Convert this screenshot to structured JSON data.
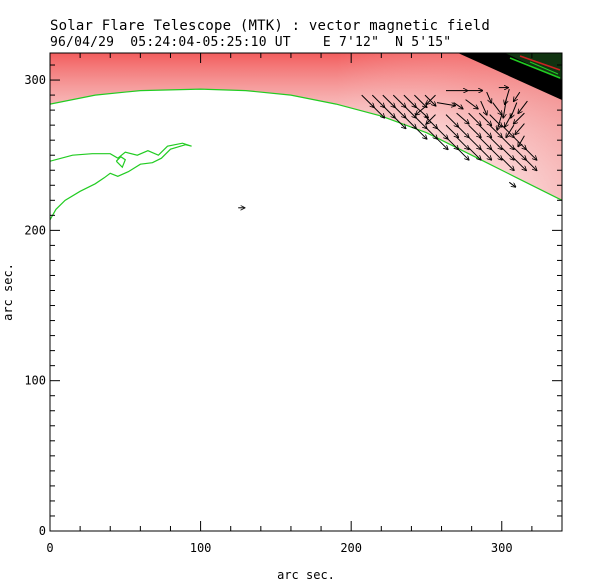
{
  "title": "Solar Flare Telescope (MTK) : vector magnetic field",
  "subtitle": "96/04/29  05:24:04-05:25:10 UT    E 7'12\"  N 5'15\"",
  "colors": {
    "limb": "#22cc22",
    "vector": "#000000",
    "field_red": "#ee4444"
  },
  "chart_data": {
    "type": "vector-field",
    "title": "Solar Flare Telescope (MTK) : vector magnetic field",
    "subtitle": "96/04/29  05:24:04-05:25:10 UT    E 7'12\"  N 5'15\"",
    "xlabel": "arc sec.",
    "ylabel": "arc sec.",
    "xlim": [
      0,
      340
    ],
    "ylim": [
      0,
      318
    ],
    "xticks": [
      0,
      100,
      200,
      300
    ],
    "yticks": [
      0,
      100,
      200,
      300
    ],
    "limb_curve": [
      [
        0,
        284
      ],
      [
        30,
        290
      ],
      [
        60,
        293
      ],
      [
        100,
        294
      ],
      [
        130,
        293
      ],
      [
        160,
        290
      ],
      [
        190,
        284
      ],
      [
        220,
        276
      ],
      [
        250,
        265
      ],
      [
        270,
        255
      ],
      [
        290,
        245
      ],
      [
        310,
        235
      ],
      [
        330,
        225
      ],
      [
        340,
        220
      ]
    ],
    "contour_a": [
      [
        0,
        246
      ],
      [
        15,
        250
      ],
      [
        28,
        251
      ],
      [
        40,
        251
      ],
      [
        45,
        248
      ],
      [
        50,
        252
      ],
      [
        58,
        250
      ],
      [
        65,
        253
      ],
      [
        72,
        250
      ],
      [
        78,
        256
      ],
      [
        88,
        258
      ],
      [
        94,
        256
      ],
      [
        90,
        257
      ],
      [
        80,
        254
      ],
      [
        74,
        248
      ],
      [
        68,
        245
      ],
      [
        60,
        244
      ],
      [
        52,
        239
      ],
      [
        45,
        236
      ],
      [
        40,
        238
      ],
      [
        36,
        235
      ],
      [
        30,
        231
      ],
      [
        20,
        226
      ],
      [
        10,
        220
      ],
      [
        4,
        214
      ],
      [
        0,
        207
      ]
    ],
    "contour_b": [
      [
        44,
        246
      ],
      [
        48,
        242
      ],
      [
        50,
        247
      ],
      [
        47,
        249
      ],
      [
        44,
        246
      ]
    ],
    "vectors": [
      {
        "x": 207,
        "y": 290,
        "dx": 8,
        "dy": -8
      },
      {
        "x": 214,
        "y": 290,
        "dx": 8,
        "dy": -8
      },
      {
        "x": 221,
        "y": 290,
        "dx": 8,
        "dy": -8
      },
      {
        "x": 228,
        "y": 290,
        "dx": 8,
        "dy": -8
      },
      {
        "x": 235,
        "y": 290,
        "dx": 8,
        "dy": -8
      },
      {
        "x": 242,
        "y": 290,
        "dx": 8,
        "dy": -8
      },
      {
        "x": 249,
        "y": 290,
        "dx": 7,
        "dy": -7
      },
      {
        "x": 256,
        "y": 290,
        "dx": -6,
        "dy": -6
      },
      {
        "x": 263,
        "y": 293,
        "dx": 14,
        "dy": 0
      },
      {
        "x": 277,
        "y": 293,
        "dx": 10,
        "dy": 0
      },
      {
        "x": 290,
        "y": 292,
        "dx": 3,
        "dy": -7
      },
      {
        "x": 298,
        "y": 295,
        "dx": 6,
        "dy": 0
      },
      {
        "x": 305,
        "y": 294,
        "dx": -3,
        "dy": -10
      },
      {
        "x": 312,
        "y": 292,
        "dx": -4,
        "dy": -6
      },
      {
        "x": 214,
        "y": 283,
        "dx": 8,
        "dy": -8
      },
      {
        "x": 221,
        "y": 283,
        "dx": 8,
        "dy": -8
      },
      {
        "x": 228,
        "y": 283,
        "dx": 8,
        "dy": -8
      },
      {
        "x": 235,
        "y": 283,
        "dx": 8,
        "dy": -8
      },
      {
        "x": 242,
        "y": 283,
        "dx": 9,
        "dy": -8
      },
      {
        "x": 250,
        "y": 283,
        "dx": -7,
        "dy": -6
      },
      {
        "x": 257,
        "y": 285,
        "dx": 12,
        "dy": -2
      },
      {
        "x": 268,
        "y": 285,
        "dx": 6,
        "dy": -4
      },
      {
        "x": 276,
        "y": 287,
        "dx": 8,
        "dy": -6
      },
      {
        "x": 286,
        "y": 286,
        "dx": 4,
        "dy": -9
      },
      {
        "x": 294,
        "y": 285,
        "dx": 6,
        "dy": -8
      },
      {
        "x": 303,
        "y": 287,
        "dx": -2,
        "dy": -12
      },
      {
        "x": 310,
        "y": 285,
        "dx": -4,
        "dy": -10
      },
      {
        "x": 317,
        "y": 286,
        "dx": -6,
        "dy": -8
      },
      {
        "x": 228,
        "y": 276,
        "dx": 8,
        "dy": -8
      },
      {
        "x": 235,
        "y": 276,
        "dx": 8,
        "dy": -8
      },
      {
        "x": 242,
        "y": 276,
        "dx": 8,
        "dy": -8
      },
      {
        "x": 249,
        "y": 276,
        "dx": 8,
        "dy": -8
      },
      {
        "x": 256,
        "y": 277,
        "dx": -6,
        "dy": -6
      },
      {
        "x": 263,
        "y": 277,
        "dx": 8,
        "dy": -8
      },
      {
        "x": 270,
        "y": 278,
        "dx": 8,
        "dy": -7
      },
      {
        "x": 278,
        "y": 278,
        "dx": 8,
        "dy": -8
      },
      {
        "x": 285,
        "y": 278,
        "dx": 8,
        "dy": -8
      },
      {
        "x": 292,
        "y": 277,
        "dx": 8,
        "dy": -8
      },
      {
        "x": 300,
        "y": 277,
        "dx": -3,
        "dy": -10
      },
      {
        "x": 307,
        "y": 278,
        "dx": -5,
        "dy": -9
      },
      {
        "x": 315,
        "y": 278,
        "dx": -7,
        "dy": -7
      },
      {
        "x": 242,
        "y": 269,
        "dx": 8,
        "dy": -8
      },
      {
        "x": 249,
        "y": 269,
        "dx": 8,
        "dy": -8
      },
      {
        "x": 256,
        "y": 269,
        "dx": 8,
        "dy": -8
      },
      {
        "x": 263,
        "y": 270,
        "dx": 8,
        "dy": -8
      },
      {
        "x": 270,
        "y": 270,
        "dx": 8,
        "dy": -8
      },
      {
        "x": 278,
        "y": 270,
        "dx": 8,
        "dy": -8
      },
      {
        "x": 285,
        "y": 270,
        "dx": 8,
        "dy": -8
      },
      {
        "x": 292,
        "y": 270,
        "dx": 8,
        "dy": -8
      },
      {
        "x": 300,
        "y": 270,
        "dx": 8,
        "dy": -8
      },
      {
        "x": 308,
        "y": 270,
        "dx": -5,
        "dy": -8
      },
      {
        "x": 315,
        "y": 271,
        "dx": -6,
        "dy": -7
      },
      {
        "x": 256,
        "y": 262,
        "dx": 8,
        "dy": -8
      },
      {
        "x": 263,
        "y": 262,
        "dx": 8,
        "dy": -8
      },
      {
        "x": 270,
        "y": 262,
        "dx": 8,
        "dy": -8
      },
      {
        "x": 278,
        "y": 262,
        "dx": 8,
        "dy": -8
      },
      {
        "x": 285,
        "y": 262,
        "dx": 8,
        "dy": -8
      },
      {
        "x": 292,
        "y": 262,
        "dx": 8,
        "dy": -8
      },
      {
        "x": 300,
        "y": 262,
        "dx": 8,
        "dy": -8
      },
      {
        "x": 308,
        "y": 262,
        "dx": 8,
        "dy": -8
      },
      {
        "x": 315,
        "y": 263,
        "dx": -4,
        "dy": -7
      },
      {
        "x": 270,
        "y": 255,
        "dx": 8,
        "dy": -8
      },
      {
        "x": 278,
        "y": 255,
        "dx": 8,
        "dy": -8
      },
      {
        "x": 285,
        "y": 255,
        "dx": 8,
        "dy": -8
      },
      {
        "x": 292,
        "y": 255,
        "dx": 8,
        "dy": -8
      },
      {
        "x": 300,
        "y": 255,
        "dx": 8,
        "dy": -8
      },
      {
        "x": 308,
        "y": 255,
        "dx": 8,
        "dy": -8
      },
      {
        "x": 315,
        "y": 255,
        "dx": 8,
        "dy": -8
      },
      {
        "x": 300,
        "y": 248,
        "dx": 8,
        "dy": -8
      },
      {
        "x": 308,
        "y": 248,
        "dx": 8,
        "dy": -8
      },
      {
        "x": 315,
        "y": 248,
        "dx": 8,
        "dy": -8
      },
      {
        "x": 305,
        "y": 232,
        "dx": 4,
        "dy": -3
      },
      {
        "x": 125,
        "y": 215,
        "dx": 4,
        "dy": 0
      }
    ]
  }
}
